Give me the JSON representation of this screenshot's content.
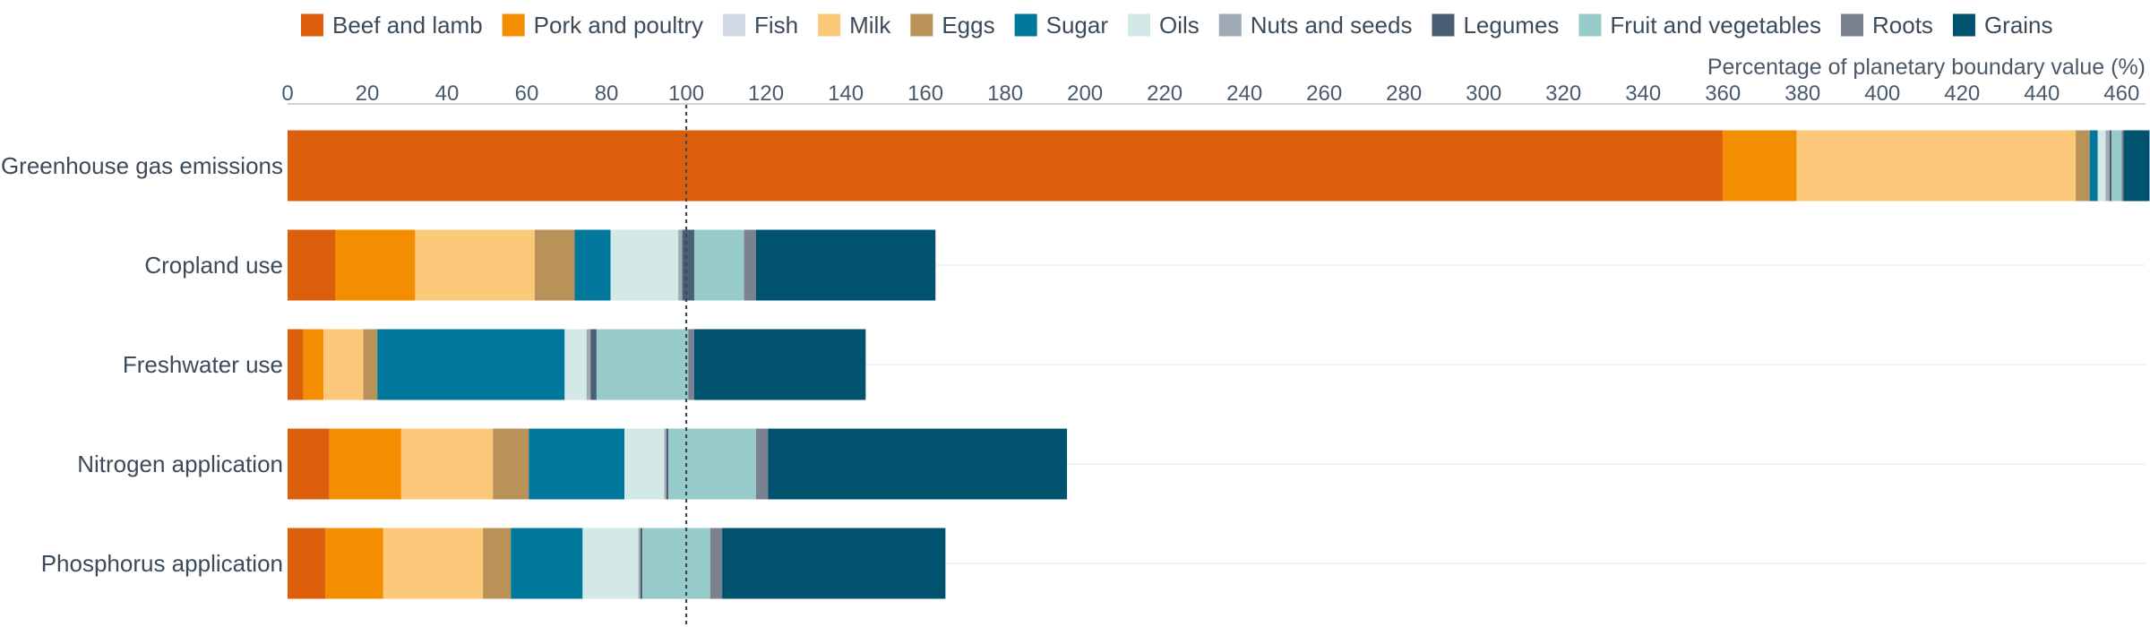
{
  "chart_data": {
    "type": "bar",
    "orientation": "horizontal",
    "stacked": true,
    "xlabel": "Percentage of planetary boundary value (%)",
    "xaxis_position": "top",
    "xlim": [
      0,
      466
    ],
    "xticks": [
      0,
      20,
      40,
      60,
      80,
      100,
      120,
      140,
      160,
      180,
      200,
      220,
      240,
      260,
      280,
      300,
      320,
      340,
      360,
      380,
      400,
      420,
      440,
      460
    ],
    "reference_line": {
      "x": 100,
      "style": "dotted"
    },
    "legend_position": "top",
    "grid": "horizontal row lines",
    "categories": [
      "Greenhouse gas emissions",
      "Cropland use",
      "Freshwater use",
      "Nitrogen application",
      "Phosphorus application"
    ],
    "series": [
      {
        "name": "Beef and lamb",
        "color": "#de5f0b",
        "values": [
          360,
          12,
          4,
          10.5,
          9.5
        ]
      },
      {
        "name": "Pork and poultry",
        "color": "#f28e00",
        "values": [
          18.5,
          20,
          5,
          18,
          14.5
        ]
      },
      {
        "name": "Fish",
        "color": "#cfd8e3",
        "values": [
          0,
          0,
          0,
          0,
          0
        ]
      },
      {
        "name": "Milk",
        "color": "#fcc97b",
        "values": [
          70,
          30,
          10,
          23,
          25
        ]
      },
      {
        "name": "Eggs",
        "color": "#b99258",
        "values": [
          3.5,
          10,
          3.5,
          9,
          7
        ]
      },
      {
        "name": "Sugar",
        "color": "#00789c",
        "values": [
          2,
          9,
          47,
          24,
          18
        ]
      },
      {
        "name": "Oils",
        "color": "#d2e9e8",
        "values": [
          2,
          17,
          5.5,
          10,
          14
        ]
      },
      {
        "name": "Nuts and seeds",
        "color": "#a0aab5",
        "values": [
          1,
          1,
          1,
          0.5,
          0.5
        ]
      },
      {
        "name": "Legumes",
        "color": "#4a5f74",
        "values": [
          0.5,
          3,
          1.5,
          0.5,
          0.5
        ]
      },
      {
        "name": "Fruit and vegetables",
        "color": "#96cbca",
        "values": [
          2.5,
          12.5,
          23,
          22,
          17
        ]
      },
      {
        "name": "Roots",
        "color": "#7a8290",
        "values": [
          0.5,
          3,
          1.5,
          3,
          3
        ]
      },
      {
        "name": "Grains",
        "color": "#00526e",
        "values": [
          6.5,
          45,
          43,
          75,
          56
        ]
      }
    ]
  }
}
